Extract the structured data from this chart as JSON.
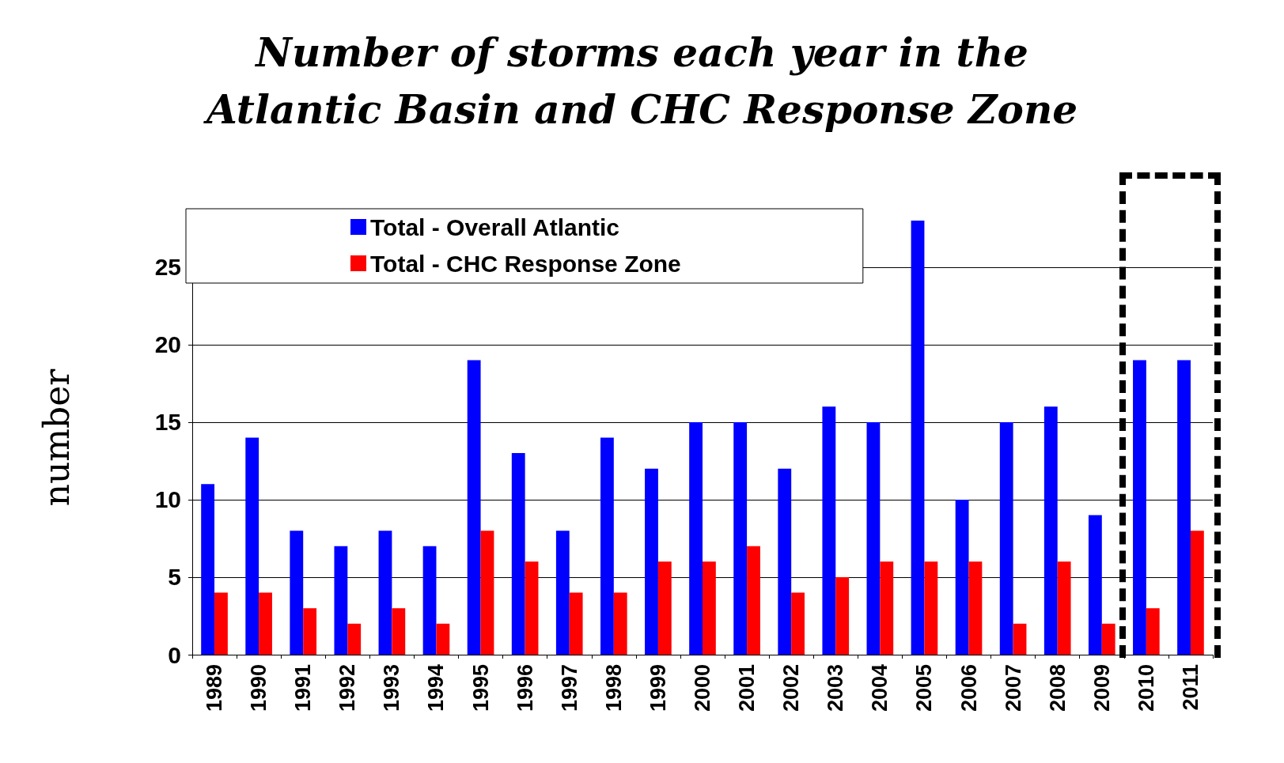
{
  "chart_data": {
    "type": "bar",
    "title": "Number of storms each year in the\nAtlantic Basin and CHC Response Zone",
    "ylabel": "number",
    "categories": [
      "1989",
      "1990",
      "1991",
      "1992",
      "1993",
      "1994",
      "1995",
      "1996",
      "1997",
      "1998",
      "1999",
      "2000",
      "2001",
      "2002",
      "2003",
      "2004",
      "2005",
      "2006",
      "2007",
      "2008",
      "2009",
      "2010",
      "2011"
    ],
    "series": [
      {
        "name": "Total - Overall Atlantic",
        "color": "#0000ff",
        "values": [
          11,
          14,
          8,
          7,
          8,
          7,
          19,
          13,
          8,
          14,
          12,
          15,
          15,
          12,
          16,
          15,
          28,
          10,
          15,
          16,
          9,
          19,
          19
        ]
      },
      {
        "name": "Total - CHC Response Zone",
        "color": "#ff0000",
        "values": [
          4,
          4,
          3,
          2,
          3,
          2,
          8,
          6,
          4,
          4,
          6,
          6,
          7,
          4,
          5,
          6,
          6,
          6,
          2,
          6,
          2,
          3,
          8
        ]
      }
    ],
    "ylim": [
      0,
      28
    ],
    "yticks": [
      0,
      5,
      10,
      15,
      20,
      25
    ],
    "grid": "y",
    "legend": "top left"
  }
}
